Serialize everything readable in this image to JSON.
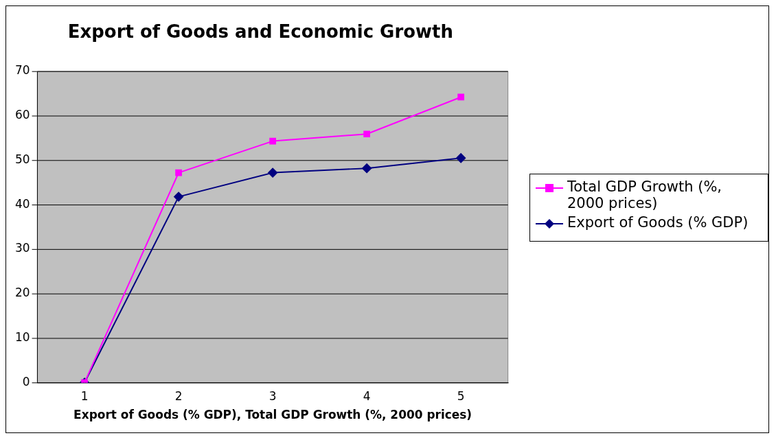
{
  "chart_data": {
    "type": "line",
    "title": "Export of Goods and Economic Growth",
    "xlabel": "Export of Goods (% GDP), Total GDP Growth (%, 2000 prices)",
    "categories": [
      "1",
      "2",
      "3",
      "4",
      "5"
    ],
    "series": [
      {
        "name": "Total GDP Growth (%, 2000 prices)",
        "color": "#ff00ff",
        "marker": "square",
        "values": [
          0,
          47.2,
          54.3,
          55.9,
          64.2
        ]
      },
      {
        "name": "Export of Goods (% GDP)",
        "color": "#000080",
        "marker": "diamond",
        "values": [
          0,
          41.8,
          47.2,
          48.2,
          50.5
        ]
      }
    ],
    "ylim": [
      0,
      70
    ],
    "yticks": [
      0,
      10,
      20,
      30,
      40,
      50,
      60,
      70
    ],
    "grid": "y",
    "legend": "right"
  }
}
